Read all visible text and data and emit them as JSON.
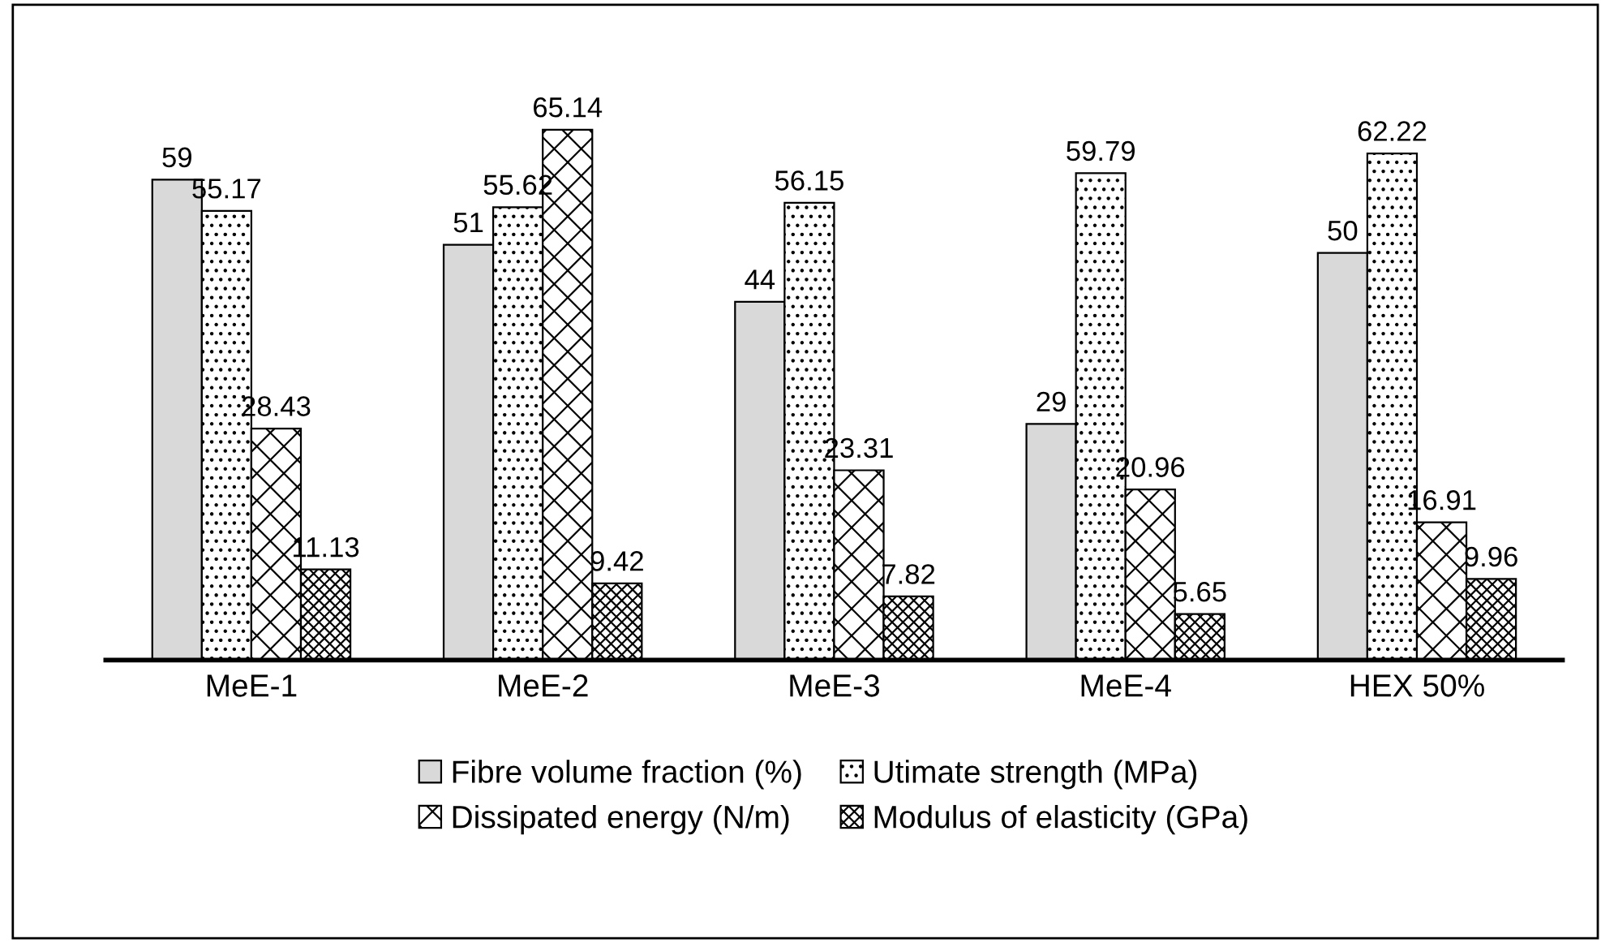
{
  "chart_data": {
    "type": "bar",
    "categories": [
      "MeE-1",
      "MeE-2",
      "MeE-3",
      "MeE-4",
      "HEX 50%"
    ],
    "series": [
      {
        "name": "Fibre volume fraction (%)",
        "color": "#d9d9d9",
        "values": [
          59,
          51,
          44,
          29,
          50
        ]
      },
      {
        "name": "Utimate strength (MPa)",
        "color": "#000000",
        "values": [
          55.17,
          55.62,
          56.15,
          59.79,
          62.22
        ]
      },
      {
        "name": "Dissipated energy (N/m)",
        "color": "#000000",
        "values": [
          28.43,
          65.14,
          23.31,
          20.96,
          16.91
        ]
      },
      {
        "name": "Modulus of elasticity (GPa)",
        "color": "#000000",
        "values": [
          11.13,
          9.42,
          7.82,
          5.65,
          9.96
        ]
      }
    ],
    "data_labels": true,
    "legend": "bottom",
    "grid": false
  }
}
